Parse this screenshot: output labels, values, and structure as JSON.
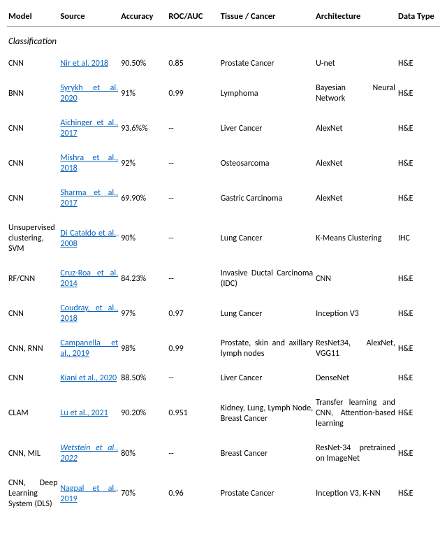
{
  "columns": [
    "Model",
    "Source",
    "Accuracy",
    "ROC/AUC",
    "Tissue / Cancer",
    "Architecture",
    "Data Type"
  ],
  "section_label": "Classification",
  "link_color": "#0563c1",
  "rows": [
    {
      "model": "CNN",
      "source": "Nir et al. 2018",
      "accuracy": "90.50%",
      "roc": "0.85",
      "tissue": "Prostate Cancer",
      "arch": "U-net",
      "dtype": "H&E"
    },
    {
      "model": "BNN",
      "source": "Syrykh et al. 2020",
      "accuracy": "91%",
      "roc": "0.99",
      "tissue": "Lymphoma",
      "arch": "Bayesian Neural Network",
      "dtype": "H&E"
    },
    {
      "model": "CNN",
      "source": "Aichinger et al., 2017",
      "accuracy": "93.6%%",
      "roc": "--",
      "tissue": "Liver Cancer",
      "arch": "AlexNet",
      "dtype": "H&E"
    },
    {
      "model": "CNN",
      "source": "Mishra et al., 2018",
      "accuracy": "92%",
      "roc": "--",
      "tissue": "Osteosarcoma",
      "arch": "AlexNet",
      "dtype": "H&E"
    },
    {
      "model": "CNN",
      "source": "Sharma et al., 2017",
      "accuracy": "69.90%",
      "roc": "--",
      "tissue": "Gastric Carcinoma",
      "arch": "AlexNet",
      "dtype": "H&E"
    },
    {
      "model": "Unsupervised clustering, SVM",
      "source": "Di Cataldo et al., 2008",
      "accuracy": "90%",
      "roc": "--",
      "tissue": "Lung Cancer",
      "arch": "K-Means Clustering",
      "dtype": "IHC"
    },
    {
      "model": "RF/CNN",
      "source": "Cruz-Roa et al. 2014",
      "accuracy": "84.23%",
      "roc": "--",
      "tissue": "Invasive Ductal Carcinoma (IDC)",
      "arch": "CNN",
      "dtype": "H&E"
    },
    {
      "model": "CNN",
      "source": "Coudray, et al., 2018",
      "accuracy": "97%",
      "roc": "0.97",
      "tissue": "Lung Cancer",
      "arch": "Inception V3",
      "dtype": "H&E"
    },
    {
      "model": "CNN, RNN",
      "source": "Campanella et al., 2019",
      "accuracy": "98%",
      "roc": "0.99",
      "tissue": "Prostate, skin and axillary lymph nodes",
      "arch": "ResNet34, AlexNet, VGG11",
      "dtype": "H&E"
    },
    {
      "model": "CNN",
      "source": "Kiani et al., 2020",
      "accuracy": "88.50%",
      "roc": "--",
      "tissue": "Liver Cancer",
      "arch": "DenseNet",
      "dtype": "H&E"
    },
    {
      "model": "CLAM",
      "source": "Lu et al., 2021",
      "accuracy": "90.20%",
      "roc": "0.951",
      "tissue": "Kidney, Lung, Lymph Node, Breast Cancer",
      "arch": "Transfer learning and CNN, Attention-based learning",
      "dtype": "H&E"
    },
    {
      "model": "CNN, MIL",
      "source": "Wetstein et al., 2022",
      "source_italic": true,
      "accuracy": "80%",
      "roc": "--",
      "tissue": "Breast Cancer",
      "arch": "ResNet-34 pretrained on ImageNet",
      "dtype": "H&E"
    },
    {
      "model": "CNN, Deep Learning System (DLS)",
      "source": "Nagpal et al., 2019",
      "accuracy": "70%",
      "roc": "0.96",
      "tissue": "Prostate Cancer",
      "arch": "Inception V3, K-NN",
      "dtype": "H&E"
    }
  ]
}
